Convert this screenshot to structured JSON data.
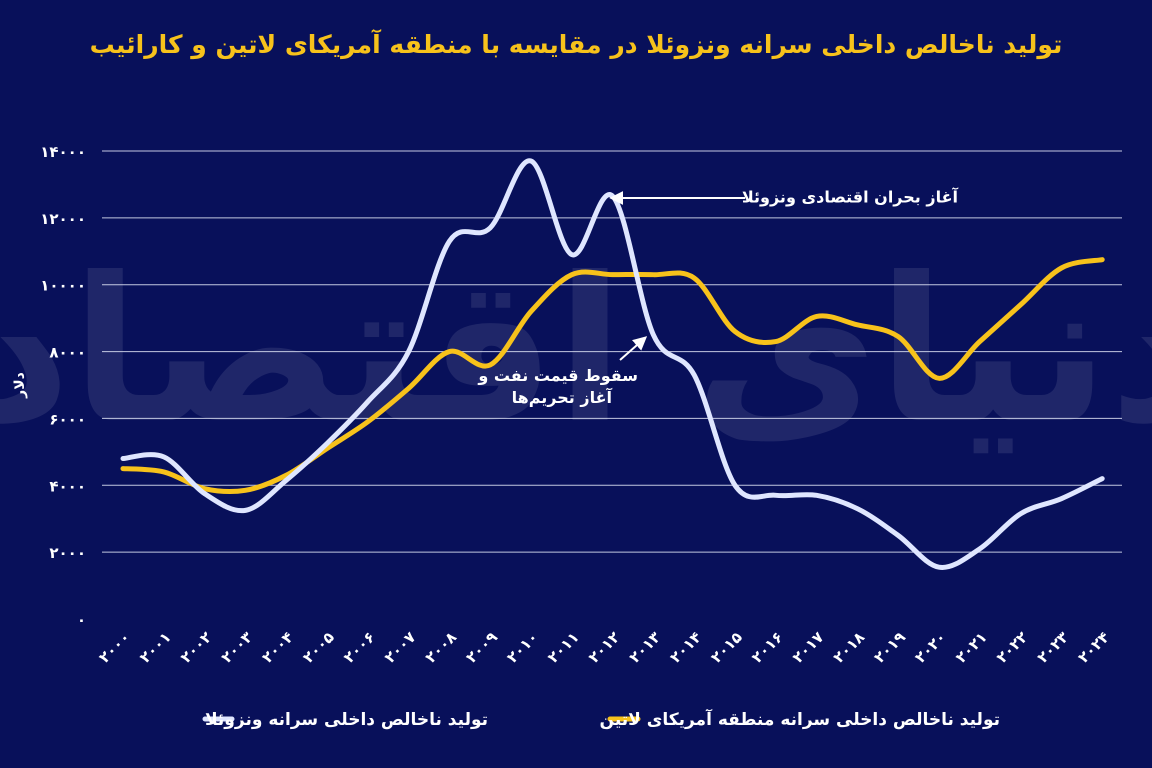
{
  "title": "تولید ناخالص داخلی سرانه ونزوئلا در مقایسه با منطقه آمریکای لاتین و کارائیب",
  "ylabel": "دلار",
  "colors": {
    "background": "#08105a",
    "title": "#f7c21b",
    "venezuela": "#dfe6ff",
    "latam": "#f7c21b",
    "grid": "#d8dcf0",
    "text": "#ffffff"
  },
  "annotations": {
    "crisis": "آغاز بحران اقتصادی ونزوئلا",
    "oil_line1": "سقوط قیمت نفت و",
    "oil_line2": "آغاز تحریم‌ها"
  },
  "chart_data": {
    "type": "line",
    "title": "تولید ناخالص داخلی سرانه ونزوئلا در مقایسه با منطقه آمریکای لاتین و کارائیب",
    "xlabel": "",
    "ylabel": "دلار",
    "ylim": [
      0,
      14000
    ],
    "yticks": [
      0,
      2000,
      4000,
      6000,
      8000,
      10000,
      12000,
      14000
    ],
    "ytick_labels": [
      "۰",
      "۲۰۰۰",
      "۴۰۰۰",
      "۶۰۰۰",
      "۸۰۰۰",
      "۱۰۰۰۰",
      "۱۲۰۰۰",
      "۱۴۰۰۰"
    ],
    "x": [
      2000,
      2001,
      2002,
      2003,
      2004,
      2005,
      2006,
      2007,
      2008,
      2009,
      2010,
      2011,
      2012,
      2013,
      2014,
      2015,
      2016,
      2017,
      2018,
      2019,
      2020,
      2021,
      2022,
      2023,
      2024
    ],
    "x_labels": [
      "۲۰۰۰",
      "۲۰۰۱",
      "۲۰۰۲",
      "۲۰۰۳",
      "۲۰۰۴",
      "۲۰۰۵",
      "۲۰۰۶",
      "۲۰۰۷",
      "۲۰۰۸",
      "۲۰۰۹",
      "۲۰۱۰",
      "۲۰۱۱",
      "۲۰۱۲",
      "۲۰۱۳",
      "۲۰۱۴",
      "۲۰۱۵",
      "۲۰۱۶",
      "۲۰۱۷",
      "۲۰۱۸",
      "۲۰۱۹",
      "۲۰۲۰",
      "۲۰۲۱",
      "۲۰۲۲",
      "۲۰۲۳",
      "۲۰۲۴"
    ],
    "grid": true,
    "legend_position": "bottom",
    "series": [
      {
        "name": "تولید ناخالص داخلی سرانه ونزوئلا",
        "values": [
          4800,
          4850,
          3750,
          3250,
          4150,
          5250,
          6500,
          8000,
          11300,
          11700,
          13700,
          10900,
          12650,
          8500,
          7300,
          4000,
          3700,
          3700,
          3300,
          2500,
          1550,
          2100,
          3150,
          3600,
          4200
        ]
      },
      {
        "name": "تولید ناخالص داخلی سرانه منطقه آمریکای لاتین",
        "values": [
          4500,
          4400,
          3900,
          3850,
          4300,
          5100,
          5900,
          6900,
          8000,
          7600,
          9200,
          10300,
          10300,
          10300,
          10200,
          8600,
          8300,
          9050,
          8800,
          8450,
          7200,
          8300,
          9400,
          10500,
          10750
        ]
      }
    ]
  }
}
